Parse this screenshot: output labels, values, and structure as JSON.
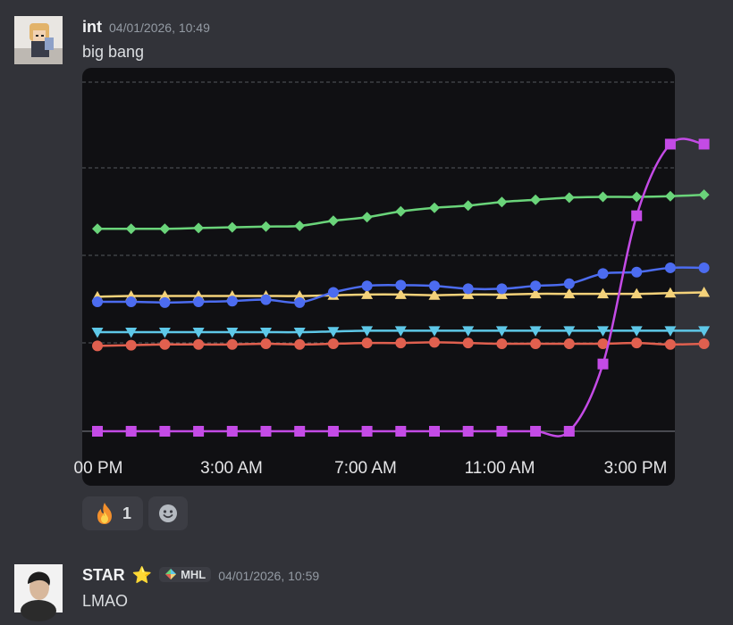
{
  "messages": [
    {
      "username": "int",
      "timestamp": "04/01/2026, 10:49",
      "content": "big bang",
      "reactions": [
        {
          "emoji": "fire-emoji",
          "count": "1"
        },
        {
          "emoji": "add-reaction-icon"
        }
      ]
    },
    {
      "username": "STAR",
      "username_emoji": "⭐",
      "badge": "MHL",
      "timestamp": "04/01/2026, 10:59",
      "content": "LMAO"
    }
  ],
  "colors": {
    "background": "#323339",
    "chart_bg": "#101013",
    "green": "#6ad47a",
    "blue": "#4c6cf0",
    "yellow": "#f4d27a",
    "cyan": "#5ec8e8",
    "red": "#e0604f",
    "purple": "#c44be6"
  },
  "chart_data": {
    "type": "line",
    "x_tick_labels": [
      "00 PM",
      "3:00 AM",
      "7:00 AM",
      "11:00 AM",
      "3:00 PM"
    ],
    "y_range": [
      0,
      100
    ],
    "grid": "dashed-horizontal",
    "legend": "none",
    "series": [
      {
        "color": "green",
        "marker": "diamond",
        "values": [
          56,
          56,
          56,
          56.2,
          56.4,
          56.6,
          56.8,
          58.2,
          59.2,
          60.8,
          61.8,
          62.4,
          63.4,
          64.0,
          64.6,
          64.8,
          64.8,
          65.0,
          65.4
        ]
      },
      {
        "color": "yellow",
        "marker": "triangle-up",
        "values": [
          37.2,
          37.4,
          37.4,
          37.4,
          37.4,
          37.4,
          37.4,
          37.6,
          37.8,
          37.8,
          37.6,
          37.8,
          37.8,
          38.0,
          38.0,
          38.0,
          38.0,
          38.2,
          38.4
        ]
      },
      {
        "color": "blue",
        "marker": "circle",
        "values": [
          35.8,
          35.8,
          35.6,
          35.8,
          36.0,
          36.4,
          35.6,
          38.4,
          40.2,
          40.4,
          40.2,
          39.4,
          39.4,
          40.2,
          40.8,
          43.6,
          44.0,
          45.2,
          45.2
        ]
      },
      {
        "color": "cyan",
        "marker": "triangle-down",
        "values": [
          27.4,
          27.4,
          27.4,
          27.4,
          27.4,
          27.4,
          27.4,
          27.6,
          27.8,
          27.8,
          27.8,
          27.8,
          27.8,
          27.8,
          27.8,
          27.8,
          27.8,
          27.8,
          27.8
        ]
      },
      {
        "color": "red",
        "marker": "circle",
        "values": [
          23.6,
          23.8,
          24.0,
          24.0,
          24.0,
          24.2,
          24.0,
          24.2,
          24.4,
          24.4,
          24.6,
          24.4,
          24.2,
          24.2,
          24.2,
          24.2,
          24.4,
          24.0,
          24.2
        ]
      },
      {
        "color": "purple",
        "marker": "square",
        "values": [
          0,
          0,
          0,
          0,
          0,
          0,
          0,
          0,
          0,
          0,
          0,
          0,
          0,
          0,
          0,
          18.6,
          59.6,
          79.4,
          79.4
        ]
      }
    ]
  }
}
